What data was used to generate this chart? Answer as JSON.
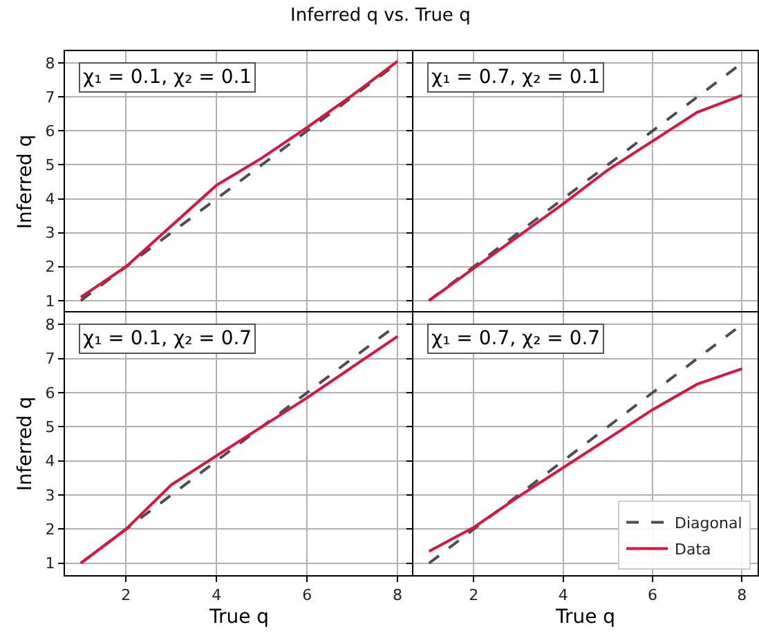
{
  "chart_data": [
    {
      "type": "line",
      "title": "Inferred q vs. True q",
      "ylabel": "Inferred q",
      "annotations": [
        "χ₁ = 0.1, χ₂ = 0.1"
      ],
      "x": [
        1,
        2,
        3,
        4,
        5,
        6,
        7,
        8
      ],
      "xlim": [
        0.65,
        8.35
      ],
      "ylim": [
        0.65,
        8.35
      ],
      "xticks": [
        2,
        4,
        6,
        8
      ],
      "yticks": [
        1,
        2,
        3,
        4,
        5,
        6,
        7,
        8
      ],
      "grid": true,
      "tick_labels": "y",
      "series": [
        {
          "color": "#4d4d4d",
          "line_style": "dashed",
          "values": [
            1,
            2,
            3,
            4,
            5,
            6,
            7,
            8
          ]
        },
        {
          "color": "#dc143c",
          "line_style": "solid",
          "values": [
            1.1,
            2.0,
            3.2,
            4.4,
            5.2,
            6.1,
            7.05,
            8.05
          ]
        }
      ]
    },
    {
      "type": "line",
      "annotations": [
        "χ₁ = 0.7, χ₂ = 0.1"
      ],
      "x": [
        1,
        2,
        3,
        4,
        5,
        6,
        7,
        8
      ],
      "xlim": [
        0.65,
        8.35
      ],
      "ylim": [
        0.65,
        8.35
      ],
      "xticks": [
        2,
        4,
        6,
        8
      ],
      "yticks": [
        1,
        2,
        3,
        4,
        5,
        6,
        7,
        8
      ],
      "grid": true,
      "tick_labels": false,
      "series": [
        {
          "color": "#4d4d4d",
          "line_style": "dashed",
          "values": [
            1,
            2,
            3,
            4,
            5,
            6,
            7,
            8
          ]
        },
        {
          "color": "#dc143c",
          "line_style": "solid",
          "values": [
            1.0,
            1.95,
            2.9,
            3.85,
            4.85,
            5.7,
            6.55,
            7.05
          ]
        }
      ]
    },
    {
      "type": "line",
      "xlabel": "True q",
      "ylabel": "Inferred q",
      "annotations": [
        "χ₁ = 0.1, χ₂ = 0.7"
      ],
      "x": [
        1,
        2,
        3,
        4,
        5,
        6,
        7,
        8
      ],
      "xlim": [
        0.65,
        8.35
      ],
      "ylim": [
        0.65,
        8.35
      ],
      "xticks": [
        2,
        4,
        6,
        8
      ],
      "yticks": [
        1,
        2,
        3,
        4,
        5,
        6,
        7,
        8
      ],
      "grid": true,
      "series": [
        {
          "color": "#4d4d4d",
          "line_style": "dashed",
          "values": [
            1,
            2,
            3,
            4,
            5,
            6,
            7,
            8
          ]
        },
        {
          "color": "#dc143c",
          "line_style": "solid",
          "values": [
            1.0,
            2.0,
            3.3,
            4.15,
            5.0,
            5.85,
            6.75,
            7.65
          ]
        }
      ]
    },
    {
      "type": "line",
      "xlabel": "True q",
      "annotations": [
        "χ₁ = 0.7, χ₂ = 0.7"
      ],
      "x": [
        1,
        2,
        3,
        4,
        5,
        6,
        7,
        8
      ],
      "xlim": [
        0.65,
        8.35
      ],
      "ylim": [
        0.65,
        8.35
      ],
      "xticks": [
        2,
        4,
        6,
        8
      ],
      "yticks": [
        1,
        2,
        3,
        4,
        5,
        6,
        7,
        8
      ],
      "grid": true,
      "tick_labels": "x",
      "legend": "bottom right",
      "series": [
        {
          "name": "Diagonal",
          "color": "#4d4d4d",
          "line_style": "dashed",
          "values": [
            1,
            2,
            3,
            4,
            5,
            6,
            7,
            8
          ]
        },
        {
          "name": "Data",
          "color": "#dc143c",
          "line_style": "solid",
          "values": [
            1.35,
            2.05,
            2.95,
            3.8,
            4.65,
            5.5,
            6.25,
            6.7
          ]
        }
      ]
    }
  ]
}
